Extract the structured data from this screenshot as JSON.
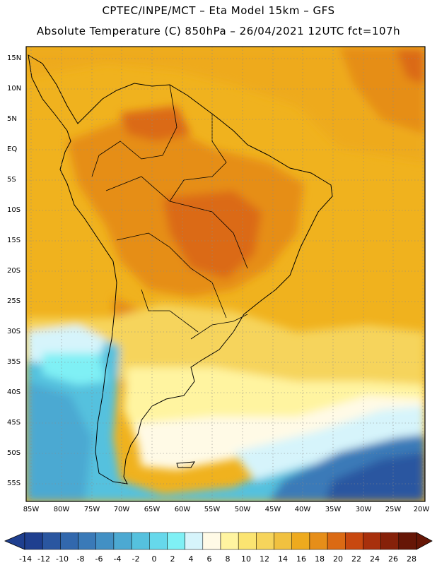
{
  "header": {
    "line1": "CPTEC/INPE/MCT –  Eta Model 15km – GFS",
    "line2": "Absolute Temperature (C) 850hPa – 26/04/2021 12UTC fct=107h"
  },
  "map": {
    "region": "South America",
    "lat_labels": [
      "15N",
      "10N",
      "5N",
      "EQ",
      "5S",
      "10S",
      "15S",
      "20S",
      "25S",
      "30S",
      "35S",
      "40S",
      "45S",
      "50S",
      "55S"
    ],
    "lon_labels": [
      "85W",
      "80W",
      "75W",
      "70W",
      "65W",
      "60W",
      "55W",
      "50W",
      "45W",
      "40W",
      "35W",
      "30W",
      "25W",
      "20W"
    ]
  },
  "colorbar": {
    "unit": "C",
    "labels": [
      "-14",
      "-12",
      "-10",
      "-8",
      "-6",
      "-4",
      "-2",
      "0",
      "2",
      "4",
      "6",
      "8",
      "10",
      "12",
      "14",
      "16",
      "18",
      "20",
      "22",
      "24",
      "26",
      "28"
    ],
    "colors": [
      "#1f3f8f",
      "#2a56a0",
      "#3268ad",
      "#3a7ab8",
      "#4290c4",
      "#4ca9d2",
      "#55c1de",
      "#66d8eb",
      "#7ff0f5",
      "#d6f4fb",
      "#fffae6",
      "#fff4a0",
      "#fbe471",
      "#f6d45b",
      "#f1c13f",
      "#eeaa1e",
      "#e68e19",
      "#db6a14",
      "#c8480f",
      "#a8300c",
      "#862109",
      "#661606"
    ]
  }
}
